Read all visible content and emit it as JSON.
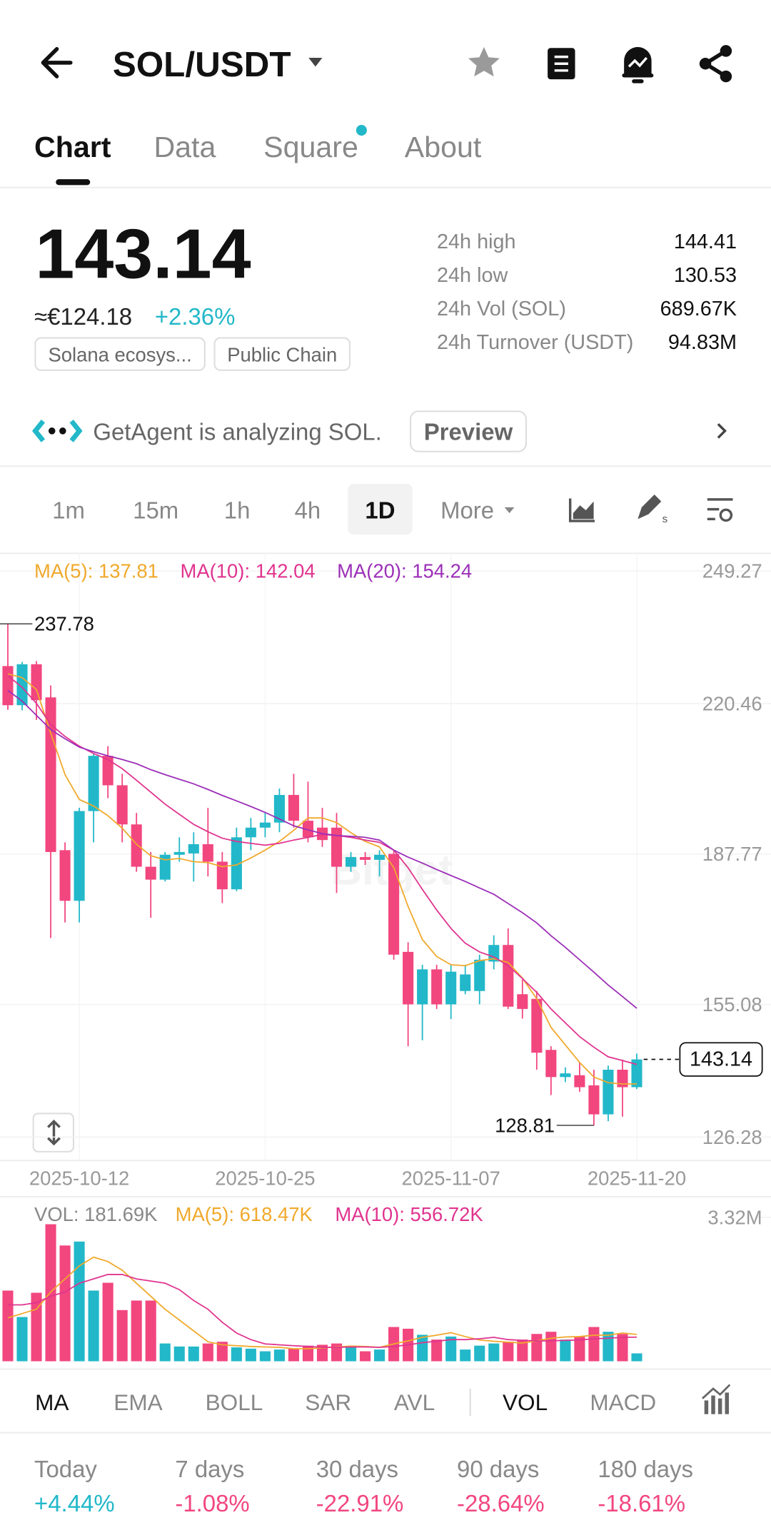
{
  "header": {
    "pair": "SOL/USDT"
  },
  "tabs": [
    "Chart",
    "Data",
    "Square",
    "About"
  ],
  "price": {
    "last": "143.14",
    "fiat": "≈€124.18",
    "change": "+2.36%",
    "tags": [
      "Solana ecosys...",
      "Public Chain"
    ]
  },
  "stats": [
    {
      "label": "24h high",
      "value": "144.41"
    },
    {
      "label": "24h low",
      "value": "130.53"
    },
    {
      "label": "24h Vol (SOL)",
      "value": "689.67K"
    },
    {
      "label": "24h Turnover (USDT)",
      "value": "94.83M"
    }
  ],
  "agent": {
    "text": "GetAgent is analyzing SOL.",
    "button": "Preview"
  },
  "intervals": [
    "1m",
    "15m",
    "1h",
    "4h",
    "1D",
    "More"
  ],
  "chart_data": [
    {
      "type": "candlestick",
      "watermark": "Bitget",
      "categories": [
        null,
        null,
        null,
        null,
        null,
        "2025-10-12",
        null,
        null,
        null,
        null,
        null,
        null,
        null,
        null,
        null,
        null,
        null,
        null,
        "2025-10-25",
        null,
        null,
        null,
        null,
        null,
        null,
        null,
        null,
        null,
        null,
        null,
        null,
        "2025-11-07",
        null,
        null,
        null,
        null,
        null,
        null,
        null,
        null,
        null,
        null,
        null,
        null,
        "2025-11-20"
      ],
      "open": [
        228.6,
        220.1,
        229.0,
        221.8,
        188.6,
        177.6,
        197.1,
        209.1,
        202.7,
        194.2,
        185.0,
        182.2,
        187.6,
        187.9,
        189.9,
        186.1,
        180.1,
        191.4,
        193.5,
        194.6,
        200.6,
        195.0,
        193.5,
        193.5,
        185.0,
        187.1,
        186.5,
        187.8,
        166.5,
        155.1,
        162.7,
        155.1,
        158.0,
        158.0,
        164.4,
        168.0,
        157.3,
        156.3,
        145.2,
        139.3,
        139.7,
        137.5,
        131.2,
        140.9,
        137.1
      ],
      "high": [
        237.78,
        229.5,
        229.7,
        224.4,
        190.3,
        197.8,
        209.5,
        211.2,
        205.2,
        196.7,
        188.2,
        188.2,
        191.4,
        192.5,
        197.8,
        188.2,
        193.5,
        195.6,
        196.7,
        202.0,
        205.2,
        203.5,
        197.8,
        196.7,
        188.2,
        188.2,
        188.6,
        188.6,
        168.6,
        163.7,
        163.7,
        163.7,
        163.7,
        165.9,
        170.1,
        171.6,
        160.5,
        158.0,
        146.0,
        141.4,
        142.5,
        140.9,
        141.8,
        143.1,
        144.41
      ],
      "low": [
        219.1,
        219.0,
        216.9,
        169.5,
        172.9,
        172.9,
        190.3,
        199.9,
        190.3,
        183.9,
        173.9,
        181.8,
        186.1,
        181.8,
        182.9,
        177.1,
        179.7,
        188.6,
        191.4,
        192.5,
        193.5,
        190.3,
        189.3,
        179.3,
        183.9,
        185.4,
        182.9,
        164.8,
        146.0,
        147.3,
        154.1,
        151.9,
        157.3,
        155.1,
        162.7,
        154.1,
        152.0,
        140.9,
        135.4,
        138.2,
        136.1,
        128.81,
        129.7,
        130.7,
        136.7
      ],
      "close": [
        220.1,
        229.0,
        221.2,
        188.2,
        177.6,
        197.1,
        209.1,
        202.7,
        194.2,
        185.0,
        182.2,
        187.6,
        188.2,
        189.9,
        186.1,
        180.1,
        191.4,
        193.5,
        194.6,
        200.6,
        195.0,
        191.4,
        190.8,
        185.0,
        187.1,
        186.5,
        187.6,
        165.9,
        155.1,
        162.7,
        155.1,
        162.2,
        161.6,
        164.8,
        168.0,
        154.6,
        154.1,
        144.6,
        139.3,
        140.1,
        137.1,
        131.2,
        140.9,
        137.1,
        143.14
      ],
      "up_color": "#22b8c9",
      "down_color": "#f2467f",
      "series": [
        {
          "name": "MA(5): 137.81",
          "color": "#f0a92c",
          "values": [
            226.9,
            226.1,
            223.5,
            214.0,
            205.0,
            199.6,
            198.2,
            196.1,
            193.4,
            189.9,
            187.4,
            186.5,
            186.8,
            186.1,
            185.9,
            185.0,
            185.4,
            186.9,
            188.6,
            190.5,
            192.9,
            195.6,
            195.6,
            194.6,
            192.4,
            190.5,
            189.3,
            184.8,
            176.4,
            169.2,
            165.5,
            163.7,
            163.5,
            164.6,
            165.0,
            164.2,
            160.8,
            156.3,
            150.1,
            146.3,
            142.5,
            139.3,
            138.1,
            137.8,
            137.81
          ]
        },
        {
          "name": "MA(10): 142.04",
          "color": "#e0348f",
          "values": [
            226.5,
            224.0,
            220.5,
            215.9,
            213.3,
            211.2,
            209.6,
            208.3,
            206.3,
            203.8,
            201.2,
            198.6,
            196.4,
            194.2,
            192.6,
            191.2,
            190.5,
            190.1,
            189.7,
            190.1,
            190.8,
            191.4,
            192.0,
            191.8,
            191.4,
            190.8,
            190.3,
            188.6,
            184.8,
            180.1,
            175.6,
            171.6,
            168.4,
            166.5,
            165.4,
            163.5,
            160.7,
            157.7,
            154.1,
            151.1,
            148.1,
            145.8,
            143.7,
            142.9,
            142.04
          ]
        },
        {
          "name": "MA(20): 154.24",
          "color": "#9c2fb8",
          "values": [
            223.3,
            221.0,
            217.9,
            214.8,
            212.8,
            211.0,
            210.0,
            209.1,
            208.3,
            207.4,
            206.1,
            205.0,
            204.0,
            203.0,
            201.8,
            200.5,
            199.3,
            198.1,
            196.8,
            195.4,
            193.9,
            193.0,
            192.2,
            191.8,
            191.6,
            191.4,
            190.8,
            188.6,
            187.1,
            185.8,
            184.4,
            183.1,
            181.8,
            180.4,
            179.0,
            177.0,
            175.0,
            172.8,
            170.0,
            167.5,
            164.8,
            162.1,
            159.3,
            156.8,
            154.24
          ]
        }
      ],
      "high_marker": 237.78,
      "low_marker": 128.81,
      "last_price": 143.14,
      "ylim": [
        126.28,
        249.27
      ],
      "yticks": [
        249.27,
        220.46,
        187.77,
        155.08,
        126.28
      ],
      "grid": true
    },
    {
      "type": "bar",
      "label": "VOL: 181.69K",
      "values": [
        1.63,
        1.02,
        1.58,
        3.16,
        2.67,
        2.76,
        1.63,
        1.81,
        1.18,
        1.4,
        1.4,
        0.41,
        0.34,
        0.34,
        0.41,
        0.45,
        0.32,
        0.29,
        0.23,
        0.27,
        0.29,
        0.36,
        0.38,
        0.41,
        0.32,
        0.23,
        0.27,
        0.79,
        0.75,
        0.61,
        0.5,
        0.57,
        0.27,
        0.36,
        0.41,
        0.45,
        0.5,
        0.63,
        0.68,
        0.5,
        0.57,
        0.79,
        0.68,
        0.63,
        0.18169
      ],
      "series": [
        {
          "name": "MA(5): 618.47K",
          "color": "#f0a92c",
          "values": [
            1.0,
            1.1,
            1.2,
            1.6,
            1.9,
            2.2,
            2.4,
            2.3,
            2.1,
            1.8,
            1.5,
            1.2,
            0.95,
            0.7,
            0.45,
            0.38,
            0.36,
            0.34,
            0.33,
            0.32,
            0.29,
            0.29,
            0.31,
            0.33,
            0.35,
            0.34,
            0.32,
            0.4,
            0.47,
            0.55,
            0.6,
            0.66,
            0.57,
            0.49,
            0.46,
            0.44,
            0.42,
            0.47,
            0.53,
            0.56,
            0.57,
            0.6,
            0.6,
            0.65,
            0.61847
          ]
        },
        {
          "name": "MA(10): 556.72K",
          "color": "#e0348f",
          "values": [
            1.3,
            1.3,
            1.35,
            1.5,
            1.6,
            1.8,
            1.9,
            2.0,
            2.0,
            1.9,
            1.85,
            1.8,
            1.65,
            1.4,
            1.2,
            0.9,
            0.65,
            0.5,
            0.4,
            0.38,
            0.36,
            0.34,
            0.32,
            0.32,
            0.33,
            0.33,
            0.32,
            0.34,
            0.38,
            0.43,
            0.46,
            0.5,
            0.5,
            0.52,
            0.55,
            0.5,
            0.48,
            0.47,
            0.47,
            0.48,
            0.49,
            0.52,
            0.53,
            0.55,
            0.55672
          ]
        }
      ],
      "ylim": [
        0,
        3.32
      ],
      "yticks": [
        {
          "value": 3.32,
          "label": "3.32M"
        }
      ]
    }
  ],
  "indicators": [
    "MA",
    "EMA",
    "BOLL",
    "SAR",
    "AVL",
    "VOL",
    "MACD"
  ],
  "performance": [
    {
      "period": "Today",
      "change": "+4.44%"
    },
    {
      "period": "7 days",
      "change": "-1.08%"
    },
    {
      "period": "30 days",
      "change": "-22.91%"
    },
    {
      "period": "90 days",
      "change": "-28.64%"
    },
    {
      "period": "180 days",
      "change": "-18.61%"
    }
  ]
}
